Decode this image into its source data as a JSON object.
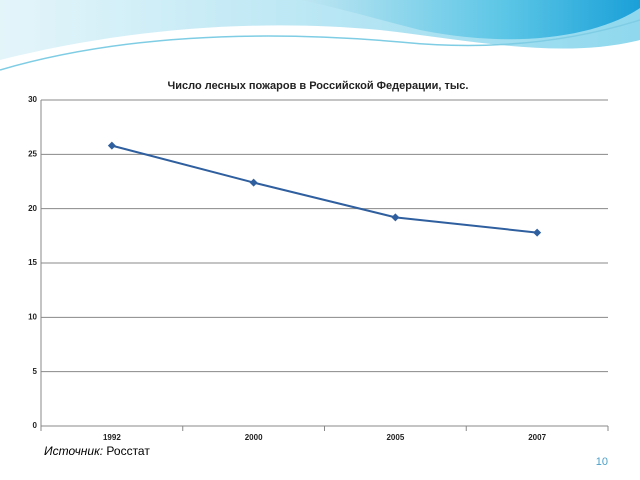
{
  "chart_data": {
    "type": "line",
    "title": "Число лесных пожаров в Российской Федерации, тыс.",
    "categories": [
      "1992",
      "2000",
      "2005",
      "2007"
    ],
    "values": [
      25.8,
      22.4,
      19.2,
      17.8
    ],
    "color": "#2f5f9f",
    "ylim": [
      0,
      30
    ],
    "yticks": [
      0,
      5,
      10,
      15,
      20,
      25,
      30
    ],
    "grid": true
  },
  "source": {
    "label": "Источник:",
    "value": "Росстат"
  },
  "page_number": 10
}
